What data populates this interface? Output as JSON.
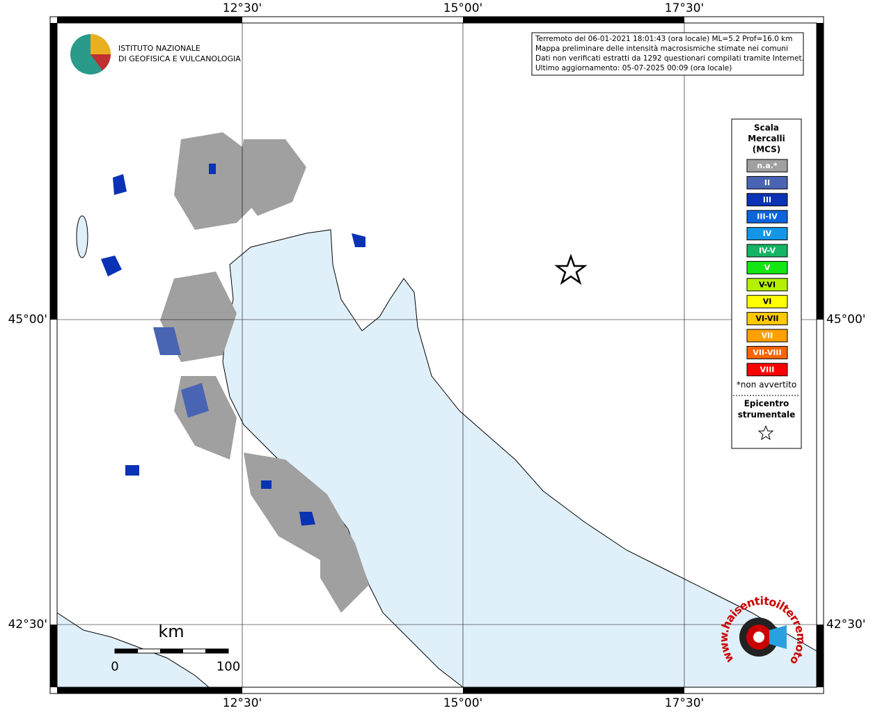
{
  "header": {
    "institute": [
      "ISTITUTO NAZIONALE",
      "DI GEOFISICA E VULCANOLOGIA"
    ]
  },
  "graticule": {
    "longitude": [
      "12°30'",
      "15°00'",
      "17°30'"
    ],
    "latitude": [
      "45°00'",
      "42°30'"
    ]
  },
  "info": [
    "Terremoto del 06-01-2021 18:01:43 (ora locale) ML=5.2 Prof=16.0 km",
    "Mappa preliminare delle intensità macrosismiche stimate nei comuni",
    "Dati non verificati estratti da 1292 questionari compilati tramite Internet.",
    "Ultimo aggiornamento: 05-07-2025 00:09 (ora locale)"
  ],
  "legend": {
    "title": [
      "Scala",
      "Mercalli",
      "(MCS)"
    ],
    "items": [
      {
        "label": "n.a.*",
        "color": "#a0a0a0"
      },
      {
        "label": "II",
        "color": "#4a64b4"
      },
      {
        "label": "III",
        "color": "#0a32b4"
      },
      {
        "label": "III-IV",
        "color": "#0a64dc"
      },
      {
        "label": "IV",
        "color": "#1496e6"
      },
      {
        "label": "IV-V",
        "color": "#14b464"
      },
      {
        "label": "V",
        "color": "#14e614"
      },
      {
        "label": "V-VI",
        "color": "#b4f000"
      },
      {
        "label": "VI",
        "color": "#ffff00"
      },
      {
        "label": "VI-VII",
        "color": "#ffc800"
      },
      {
        "label": "VII",
        "color": "#ffa000"
      },
      {
        "label": "VII-VIII",
        "color": "#ff6400"
      },
      {
        "label": "VIII",
        "color": "#ff0000"
      }
    ],
    "note": "*non avvertito",
    "epicenter": [
      "Epicentro",
      "strumentale"
    ]
  },
  "scale_bar": {
    "unit": "km",
    "labels": [
      "0",
      "100"
    ]
  },
  "badge": "www.haisentitoilterremoto.it"
}
